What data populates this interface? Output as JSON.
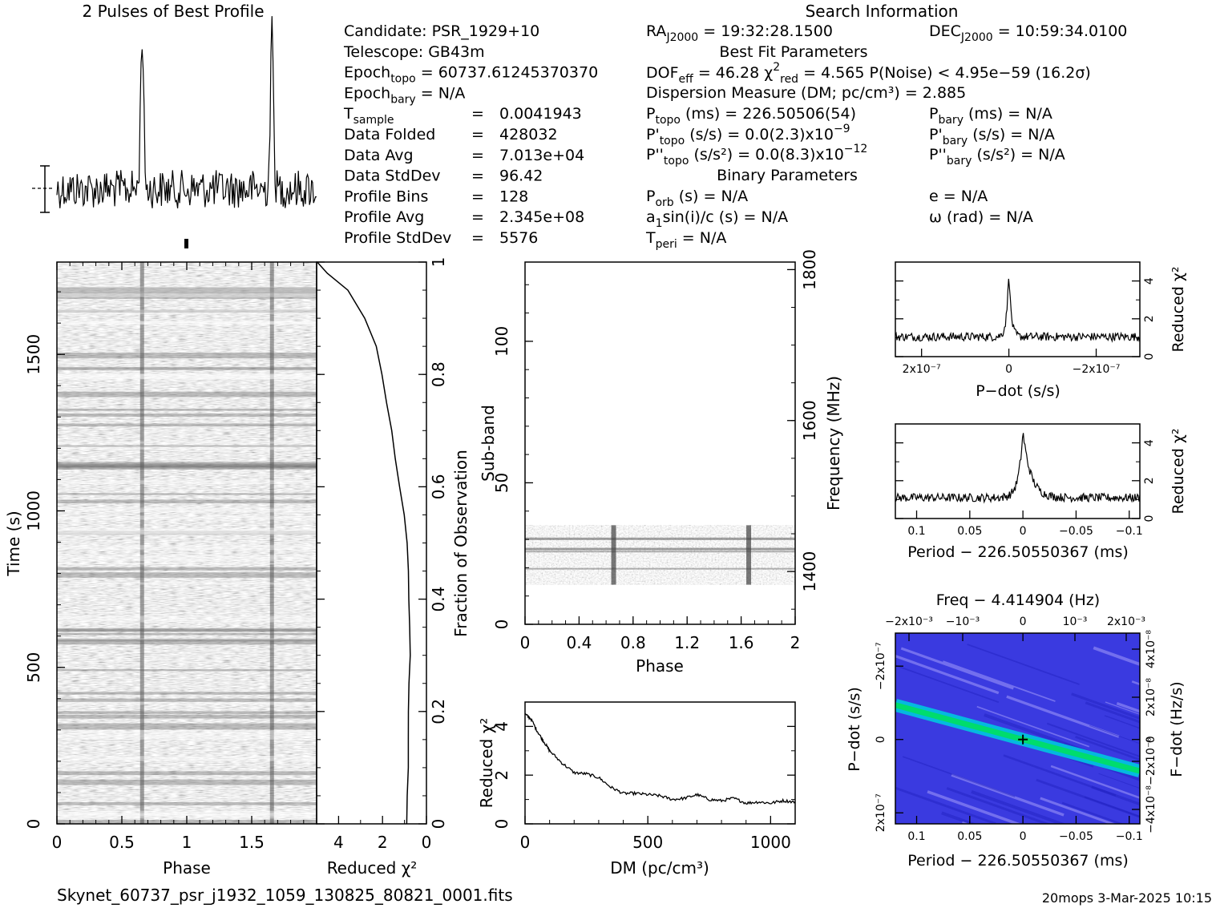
{
  "page": {
    "profile_title": "2 Pulses of Best Profile",
    "search_title": "Search Information",
    "filename": "Skynet_60737_psr_j1932_1059_130825_80821_0001.fits",
    "footer_right": "20mops  3-Mar-2025 10:15"
  },
  "info": {
    "col1": [
      {
        "key": "cand",
        "text": "Candidate:  PSR_1929+10"
      },
      {
        "key": "tel",
        "text": "Telescope:  GB43m"
      },
      {
        "key": "ept",
        "main": "Epoch",
        "sub": "topo",
        "rest": " = 60737.61245370370"
      },
      {
        "key": "epb",
        "main": "Epoch",
        "sub": "bary",
        "rest": " = N/A"
      },
      {
        "key": "ts",
        "main": "T",
        "sub": "sample",
        "eq": "=",
        "val": "0.0041943"
      },
      {
        "key": "df",
        "label": "Data Folded",
        "eq": "=",
        "val": "428032"
      },
      {
        "key": "da",
        "label": "Data Avg",
        "eq": "=",
        "val": "7.013e+04"
      },
      {
        "key": "dsd",
        "label": "Data StdDev",
        "eq": "=",
        "val": "96.42"
      },
      {
        "key": "pb",
        "label": "Profile Bins",
        "eq": "=",
        "val": "128"
      },
      {
        "key": "pa",
        "label": "Profile Avg",
        "eq": "=",
        "val": "2.345e+08"
      },
      {
        "key": "psd",
        "label": "Profile StdDev",
        "eq": "=",
        "val": "5576"
      }
    ],
    "ra": {
      "main": "RA",
      "sub": "J2000",
      "rest": " = 19:32:28.1500"
    },
    "dec": {
      "main": "DEC",
      "sub": "J2000",
      "rest": " = 10:59:34.0100"
    },
    "best_fit_title": "Best Fit Parameters",
    "dof": {
      "a": "DOF",
      "asub": "eff",
      "b": " = 46.28  χ",
      "bsup": "2",
      "bsub": "red",
      "c": " = 4.565  P(Noise) < 4.95e−59  (16.2σ)"
    },
    "dm_line": "Dispersion Measure (DM; pc/cm³) = 2.885",
    "ptopo": {
      "a": "P",
      "asub": "topo",
      "b": " (ms) =  226.50506(54)"
    },
    "pdtopo": {
      "a": "P'",
      "asub": "topo",
      "b": " (s/s) = 0.0(2.3)x10",
      "bsup": "−9"
    },
    "pddtopo": {
      "a": "P''",
      "asub": "topo",
      "b": " (s/s²) = 0.0(8.3)x10",
      "bsup": "−12"
    },
    "pbary": {
      "a": "P",
      "asub": "bary",
      "b": " (ms) = N/A"
    },
    "pdbary": {
      "a": "P'",
      "asub": "bary",
      "b": " (s/s) = N/A"
    },
    "pddbary": {
      "a": "P''",
      "asub": "bary",
      "b": " (s/s²) = N/A"
    },
    "binary_title": "Binary Parameters",
    "porb": {
      "a": "P",
      "asub": "orb",
      "b": " (s) = N/A"
    },
    "asini": {
      "a": "a",
      "asub": "1",
      "b": "sin(i)/c (s) = N/A"
    },
    "tperi": {
      "a": "T",
      "asub": "peri",
      "b": " = N/A"
    },
    "ecc": "e = N/A",
    "omega": "ω (rad) = N/A"
  },
  "chart_data": [
    {
      "name": "profile",
      "type": "line",
      "title": "2 Pulses of Best Profile",
      "x_range": [
        0,
        2
      ],
      "peaks": [
        0.656,
        1.656
      ]
    },
    {
      "name": "time-phase",
      "type": "heatmap",
      "xlabel": "Phase",
      "ylabel": "Time (s)",
      "xlim": [
        0,
        2
      ],
      "ylim": [
        0,
        1795
      ],
      "x_ticks": [
        "0",
        "0.5",
        "1",
        "1.5"
      ],
      "y_ticks": [
        "0",
        "500",
        "1000",
        "1500"
      ],
      "x_tick_values": [
        0,
        0.5,
        1,
        1.5
      ],
      "y_tick_values": [
        0,
        500,
        1000,
        1500
      ]
    },
    {
      "name": "chi2-vs-fraction",
      "type": "line",
      "xlabel": "Reduced χ²",
      "ylabel": "Fraction of Observation",
      "xlim": [
        5,
        0
      ],
      "ylim": [
        0,
        1
      ],
      "x_ticks": [
        "4",
        "2",
        "0"
      ],
      "y_ticks": [
        "0",
        "0.2",
        "0.4",
        "0.6",
        "0.8",
        "1"
      ],
      "x_tick_values": [
        4,
        2,
        0
      ],
      "y_tick_values": [
        0,
        0.2,
        0.4,
        0.6,
        0.8,
        1
      ],
      "fraction": [
        0,
        0.05,
        0.1,
        0.15,
        0.2,
        0.25,
        0.3,
        0.35,
        0.4,
        0.45,
        0.5,
        0.55,
        0.6,
        0.65,
        0.7,
        0.75,
        0.8,
        0.85,
        0.9,
        0.95,
        0.98,
        1
      ],
      "chi2": [
        0.9,
        0.9,
        0.85,
        0.85,
        0.8,
        0.8,
        0.75,
        0.75,
        0.8,
        0.8,
        0.9,
        1.0,
        1.2,
        1.4,
        1.6,
        1.8,
        2.0,
        2.3,
        2.8,
        3.6,
        4.5,
        5.0
      ]
    },
    {
      "name": "subband-phase",
      "type": "heatmap",
      "xlabel": "Phase",
      "ylabel": "Sub-band",
      "y2label": "Frequency (MHz)",
      "xlim": [
        0,
        2
      ],
      "ylim": [
        0,
        128
      ],
      "y2lim": [
        1330,
        1810
      ],
      "x_ticks": [
        "0",
        "0.4",
        "0.8",
        "1.2",
        "1.6",
        "2"
      ],
      "y_ticks": [
        "0",
        "50",
        "100"
      ],
      "y2_ticks": [
        "1400",
        "1600",
        "1800"
      ],
      "x_tick_values": [
        0,
        0.4,
        0.8,
        1.2,
        1.6,
        2
      ],
      "y_tick_values": [
        0,
        50,
        100
      ],
      "y2_tick_values": [
        1400,
        1600,
        1800
      ],
      "band_range": [
        14,
        35
      ]
    },
    {
      "name": "dm-chi2",
      "type": "line",
      "xlabel": "DM (pc/cm³)",
      "ylabel": "Reduced χ²",
      "xlim": [
        0,
        1100
      ],
      "ylim": [
        0,
        5
      ],
      "x_ticks": [
        "0",
        "500",
        "1000"
      ],
      "y_ticks": [
        "0",
        "2",
        "4"
      ],
      "x_tick_values": [
        0,
        500,
        1000
      ],
      "y_tick_values": [
        0,
        2,
        4
      ],
      "dm": [
        0,
        25,
        50,
        75,
        100,
        150,
        200,
        250,
        300,
        350,
        400,
        450,
        500,
        550,
        600,
        650,
        700,
        750,
        800,
        850,
        900,
        950,
        1000,
        1050,
        1100
      ],
      "chi2": [
        4.5,
        4.3,
        3.8,
        3.4,
        3.0,
        2.5,
        2.1,
        2.05,
        1.9,
        1.5,
        1.25,
        1.25,
        1.2,
        1.15,
        1.0,
        1.05,
        1.2,
        1.0,
        0.95,
        1.05,
        0.85,
        0.9,
        0.85,
        0.95,
        0.9
      ]
    },
    {
      "name": "pdot-chi2",
      "type": "line",
      "xlabel": "P−dot (s/s)",
      "ylabel": "Reduced χ²",
      "xlim": [
        2.6e-07,
        -3e-07
      ],
      "ylim": [
        0,
        5
      ],
      "x_ticks": [
        "2x10⁻⁷",
        "0",
        "−2x10⁻⁷"
      ],
      "y_ticks": [
        "0",
        "2",
        "4"
      ],
      "x_tick_values": [
        2e-07,
        0,
        -2e-07
      ],
      "y_tick_values": [
        0,
        2,
        4
      ],
      "peak": {
        "x": 0,
        "y": 4.7
      },
      "baseline": 1.05
    },
    {
      "name": "period-chi2",
      "type": "line",
      "xlabel": "Period − 226.50550367 (ms)",
      "ylabel": "Reduced χ²",
      "xlim": [
        0.12,
        -0.11
      ],
      "ylim": [
        0,
        5
      ],
      "x_ticks": [
        "0.1",
        "0.05",
        "0",
        "−0.05",
        "−0.1"
      ],
      "y_ticks": [
        "0",
        "2",
        "4"
      ],
      "x_tick_values": [
        0.1,
        0.05,
        0,
        -0.05,
        -0.1
      ],
      "y_tick_values": [
        0,
        2,
        4
      ],
      "peak": {
        "x": 0,
        "y": 4.6
      },
      "baseline": 1.1
    },
    {
      "name": "period-pdot-map",
      "type": "heatmap",
      "title": "Freq − 4.414904 (Hz)",
      "xlabel": "Period − 226.50550367 (ms)",
      "ylabel": "P−dot (s/s)",
      "y2label": "F−dot (Hz/s)",
      "xlim": [
        0.12,
        -0.11
      ],
      "ylim": [
        2.3e-07,
        -2.9e-07
      ],
      "x_ticks": [
        "0.1",
        "0.05",
        "0",
        "−0.05",
        "−0.1"
      ],
      "x_tick_values": [
        0.1,
        0.05,
        0,
        -0.05,
        -0.1
      ],
      "y_ticks": [
        "−2x10⁻⁷",
        "0",
        "2x10⁻⁷"
      ],
      "top_ticks": [
        "−2x10⁻³",
        "−10⁻³",
        "0",
        "10⁻³",
        "2x10⁻³"
      ],
      "right_ticks": [
        "4x10⁻⁸",
        "2x10⁻⁸",
        "0",
        "−2x10⁻⁸",
        "−4x10⁻⁸"
      ]
    }
  ]
}
